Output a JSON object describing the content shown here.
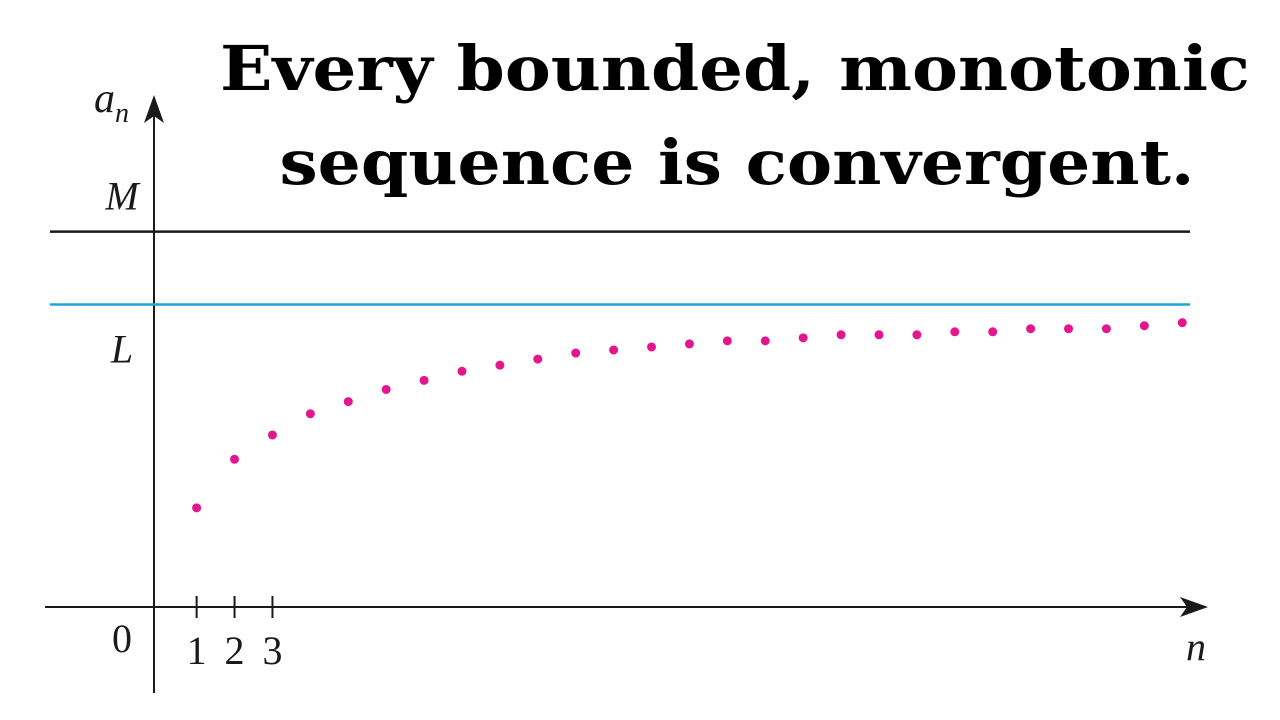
{
  "chart_data": {
    "type": "scatter",
    "title": [
      "Every bounded, monotonic",
      "sequence is convergent."
    ],
    "x_label": "n",
    "y_label": {
      "base": "a",
      "subscript": "n"
    },
    "x": [
      1,
      2,
      3,
      4,
      5,
      6,
      7,
      8,
      9,
      10,
      11,
      12,
      13,
      14,
      15,
      16,
      17,
      18,
      19,
      20,
      21,
      22,
      23,
      24,
      25,
      26,
      27
    ],
    "values": [
      0.33,
      0.49,
      0.57,
      0.64,
      0.68,
      0.72,
      0.75,
      0.78,
      0.8,
      0.82,
      0.84,
      0.85,
      0.86,
      0.87,
      0.88,
      0.88,
      0.89,
      0.9,
      0.9,
      0.9,
      0.91,
      0.91,
      0.92,
      0.92,
      0.92,
      0.93,
      0.94
    ],
    "color": "#e3168e",
    "xlim": [
      -3,
      27.6
    ],
    "ylim": [
      -0.28,
      1.69
    ],
    "xticks": [
      1,
      2,
      3
    ],
    "yticks": [
      0,
      {
        "value": 1.24,
        "label": "M",
        "color": "#1a1a1a"
      },
      {
        "value": 1,
        "label": "L",
        "color": "#1ea3dc"
      }
    ]
  }
}
